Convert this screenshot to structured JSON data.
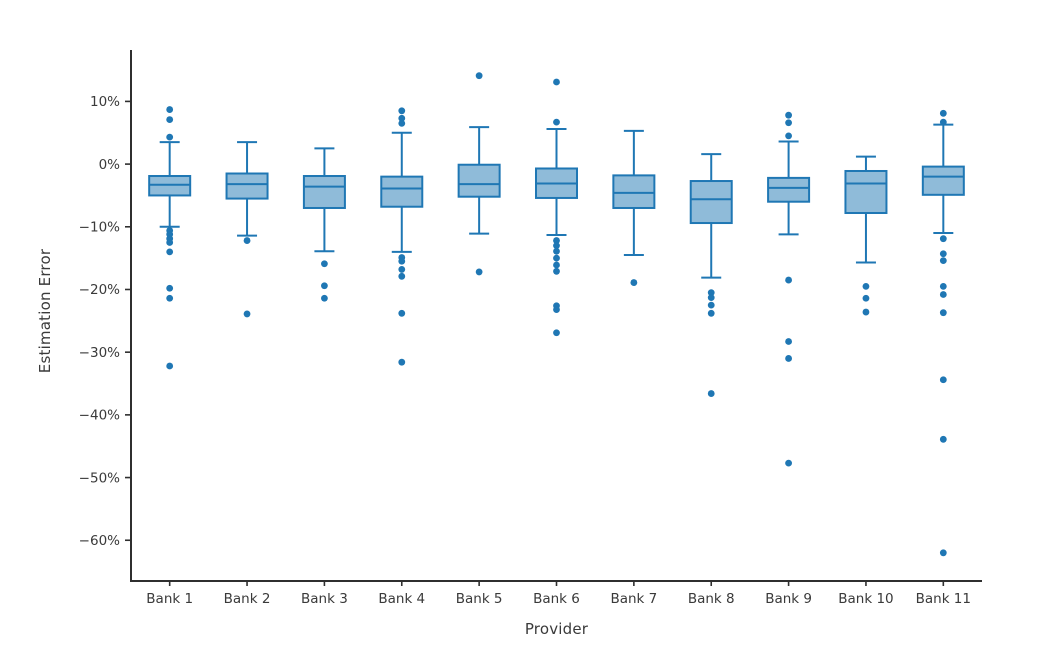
{
  "page": {
    "background": "#ffffff"
  },
  "chart_data": {
    "type": "boxplot",
    "title": "",
    "xlabel": "Provider",
    "ylabel": "Estimation Error",
    "grid": false,
    "legend": "none",
    "units": "percent",
    "ylim": [
      -66.5,
      18.2
    ],
    "y_ticks": [
      {
        "value": 10,
        "label": "10%"
      },
      {
        "value": 0,
        "label": "0%"
      },
      {
        "value": -10,
        "label": "−10%"
      },
      {
        "value": -20,
        "label": "−20%"
      },
      {
        "value": -30,
        "label": "−30%"
      },
      {
        "value": -40,
        "label": "−40%"
      },
      {
        "value": -50,
        "label": "−50%"
      },
      {
        "value": -60,
        "label": "−60%"
      }
    ],
    "categories": [
      "Bank 1",
      "Bank 2",
      "Bank 3",
      "Bank 4",
      "Bank 5",
      "Bank 6",
      "Bank 7",
      "Bank 8",
      "Bank 9",
      "Bank 10",
      "Bank 11"
    ],
    "colors": {
      "box_fill": "#8fbbd9",
      "box_edge": "#1f77b4",
      "whisker": "#1f77b4",
      "outlier": "#1f77b4",
      "axis": "#2f2f2f",
      "tick_text": "#3a3a3a"
    },
    "series": [
      {
        "name": "Bank 1",
        "whisker_low": -10.0,
        "q1": -5.0,
        "median": -3.3,
        "q3": -1.9,
        "whisker_high": 3.5,
        "outliers": [
          8.7,
          7.1,
          4.3,
          -10.6,
          -11.2,
          -11.9,
          -12.5,
          -14.0,
          -19.8,
          -21.4,
          -32.2
        ]
      },
      {
        "name": "Bank 2",
        "whisker_low": -11.4,
        "q1": -5.5,
        "median": -3.2,
        "q3": -1.5,
        "whisker_high": 3.5,
        "outliers": [
          -12.2,
          -23.9
        ]
      },
      {
        "name": "Bank 3",
        "whisker_low": -13.9,
        "q1": -7.0,
        "median": -3.6,
        "q3": -1.9,
        "whisker_high": 2.5,
        "outliers": [
          -15.9,
          -19.4,
          -21.4
        ]
      },
      {
        "name": "Bank 4",
        "whisker_low": -14.0,
        "q1": -6.8,
        "median": -3.9,
        "q3": -2.0,
        "whisker_high": 5.0,
        "outliers": [
          8.5,
          7.3,
          6.5,
          -14.9,
          -15.5,
          -16.8,
          -17.9,
          -23.8,
          -31.6
        ]
      },
      {
        "name": "Bank 5",
        "whisker_low": -11.1,
        "q1": -5.2,
        "median": -3.2,
        "q3": -0.1,
        "whisker_high": 5.9,
        "outliers": [
          14.1,
          -17.2
        ]
      },
      {
        "name": "Bank 6",
        "whisker_low": -11.3,
        "q1": -5.4,
        "median": -3.1,
        "q3": -0.7,
        "whisker_high": 5.6,
        "outliers": [
          13.1,
          6.7,
          -12.2,
          -13.0,
          -13.9,
          -15.0,
          -16.1,
          -17.1,
          -22.6,
          -23.2,
          -26.9
        ]
      },
      {
        "name": "Bank 7",
        "whisker_low": -14.5,
        "q1": -7.0,
        "median": -4.6,
        "q3": -1.8,
        "whisker_high": 5.3,
        "outliers": [
          -18.9
        ]
      },
      {
        "name": "Bank 8",
        "whisker_low": -18.1,
        "q1": -9.4,
        "median": -5.6,
        "q3": -2.7,
        "whisker_high": 1.6,
        "outliers": [
          -20.5,
          -21.3,
          -22.5,
          -23.8,
          -36.6
        ]
      },
      {
        "name": "Bank 9",
        "whisker_low": -11.2,
        "q1": -6.0,
        "median": -3.8,
        "q3": -2.2,
        "whisker_high": 3.6,
        "outliers": [
          7.8,
          6.6,
          4.5,
          -18.5,
          -28.3,
          -31.0,
          -47.7
        ]
      },
      {
        "name": "Bank 10",
        "whisker_low": -15.7,
        "q1": -7.8,
        "median": -3.1,
        "q3": -1.1,
        "whisker_high": 1.2,
        "outliers": [
          -19.5,
          -21.4,
          -23.6
        ]
      },
      {
        "name": "Bank 11",
        "whisker_low": -11.0,
        "q1": -4.9,
        "median": -2.0,
        "q3": -0.4,
        "whisker_high": 6.3,
        "outliers": [
          8.1,
          6.7,
          -11.9,
          -14.3,
          -15.4,
          -19.5,
          -20.8,
          -23.7,
          -34.4,
          -43.9,
          -62.0
        ]
      }
    ]
  }
}
